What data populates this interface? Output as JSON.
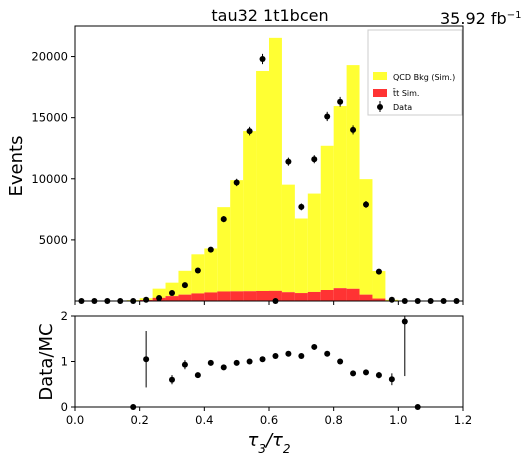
{
  "chart_data": [
    {
      "type": "bar",
      "panel": "main",
      "title": "tau32  1t1bcen",
      "luminosity": "35.92 fb",
      "luminosity_unit_exp": "−1",
      "ylabel": "Events",
      "xlim": [
        0.0,
        1.2
      ],
      "ylim": [
        0,
        22500
      ],
      "yticks": [
        "5000",
        "10000",
        "15000",
        "20000"
      ],
      "bin_edges": [
        0.0,
        0.04,
        0.08,
        0.12,
        0.16,
        0.2,
        0.24,
        0.28,
        0.32,
        0.36,
        0.4,
        0.44,
        0.48,
        0.52,
        0.56,
        0.6,
        0.64,
        0.68,
        0.72,
        0.76,
        0.8,
        0.84,
        0.88,
        0.92,
        0.96,
        1.0,
        1.04,
        1.08,
        1.12,
        1.16,
        1.2
      ],
      "series": [
        {
          "name": "QCD Bkg (Sim.)",
          "stack": "top",
          "color": "#ffff33",
          "values": [
            0,
            0,
            0,
            0,
            50,
            150,
            750,
            1100,
            1950,
            3200,
            3600,
            6900,
            9100,
            13100,
            18000,
            20700,
            8800,
            6100,
            8050,
            11800,
            14900,
            18300,
            9450,
            2250,
            80,
            0,
            0,
            0,
            0,
            0
          ]
        },
        {
          "name": "t̄t Sim.",
          "stack": "bottom",
          "color": "#ff3333",
          "values": [
            0,
            0,
            0,
            0,
            20,
            80,
            260,
            400,
            520,
            620,
            700,
            780,
            790,
            800,
            820,
            830,
            720,
            650,
            740,
            900,
            1050,
            1000,
            520,
            200,
            20,
            0,
            0,
            0,
            0,
            0
          ]
        }
      ],
      "data_points": {
        "name": "Data",
        "color": "#000000",
        "x": [
          0.02,
          0.06,
          0.1,
          0.14,
          0.18,
          0.22,
          0.26,
          0.3,
          0.34,
          0.38,
          0.42,
          0.46,
          0.5,
          0.54,
          0.58,
          0.62,
          0.66,
          0.7,
          0.74,
          0.78,
          0.82,
          0.86,
          0.9,
          0.94,
          0.98,
          1.02,
          1.06,
          1.1,
          1.14,
          1.18
        ],
        "y": [
          0,
          0,
          0,
          0,
          0,
          100,
          250,
          650,
          1300,
          2500,
          4200,
          6700,
          9700,
          13900,
          19800,
          0,
          11400,
          7700,
          11600,
          15100,
          16300,
          14000,
          7900,
          2400,
          100,
          0,
          0,
          0,
          0,
          0
        ],
        "err": [
          0,
          0,
          0,
          0,
          0,
          40,
          60,
          80,
          120,
          160,
          200,
          250,
          300,
          350,
          420,
          0,
          330,
          280,
          330,
          380,
          400,
          370,
          280,
          160,
          50,
          0,
          0,
          0,
          0,
          0
        ]
      },
      "legend_position": "top-right",
      "grid": false
    },
    {
      "type": "scatter",
      "panel": "ratio",
      "xlabel": "τ3/τ2",
      "ylabel": "Data/MC",
      "xlim": [
        0.0,
        1.2
      ],
      "ylim": [
        0,
        2
      ],
      "yticks": [
        "0",
        "1",
        "2"
      ],
      "xticks": [
        "0.0",
        "0.2",
        "0.4",
        "0.6",
        "0.8",
        "1.0",
        "1.2"
      ],
      "x": [
        0.18,
        0.22,
        0.3,
        0.34,
        0.38,
        0.42,
        0.46,
        0.5,
        0.54,
        0.58,
        0.62,
        0.66,
        0.7,
        0.74,
        0.78,
        0.82,
        0.86,
        0.9,
        0.94,
        0.98,
        1.02,
        1.06
      ],
      "y": [
        0.0,
        1.05,
        0.6,
        0.93,
        0.7,
        0.97,
        0.87,
        0.97,
        1.0,
        1.05,
        1.12,
        1.17,
        1.12,
        1.32,
        1.17,
        1.0,
        0.74,
        0.76,
        0.7,
        0.61,
        1.88,
        0.0
      ],
      "err": [
        0,
        0.62,
        0.1,
        0.1,
        0.06,
        0.06,
        0.05,
        0.04,
        0.04,
        0.04,
        0.04,
        0.04,
        0.04,
        0.05,
        0.04,
        0.04,
        0.04,
        0.05,
        0.07,
        0.13,
        1.2,
        0
      ]
    }
  ]
}
